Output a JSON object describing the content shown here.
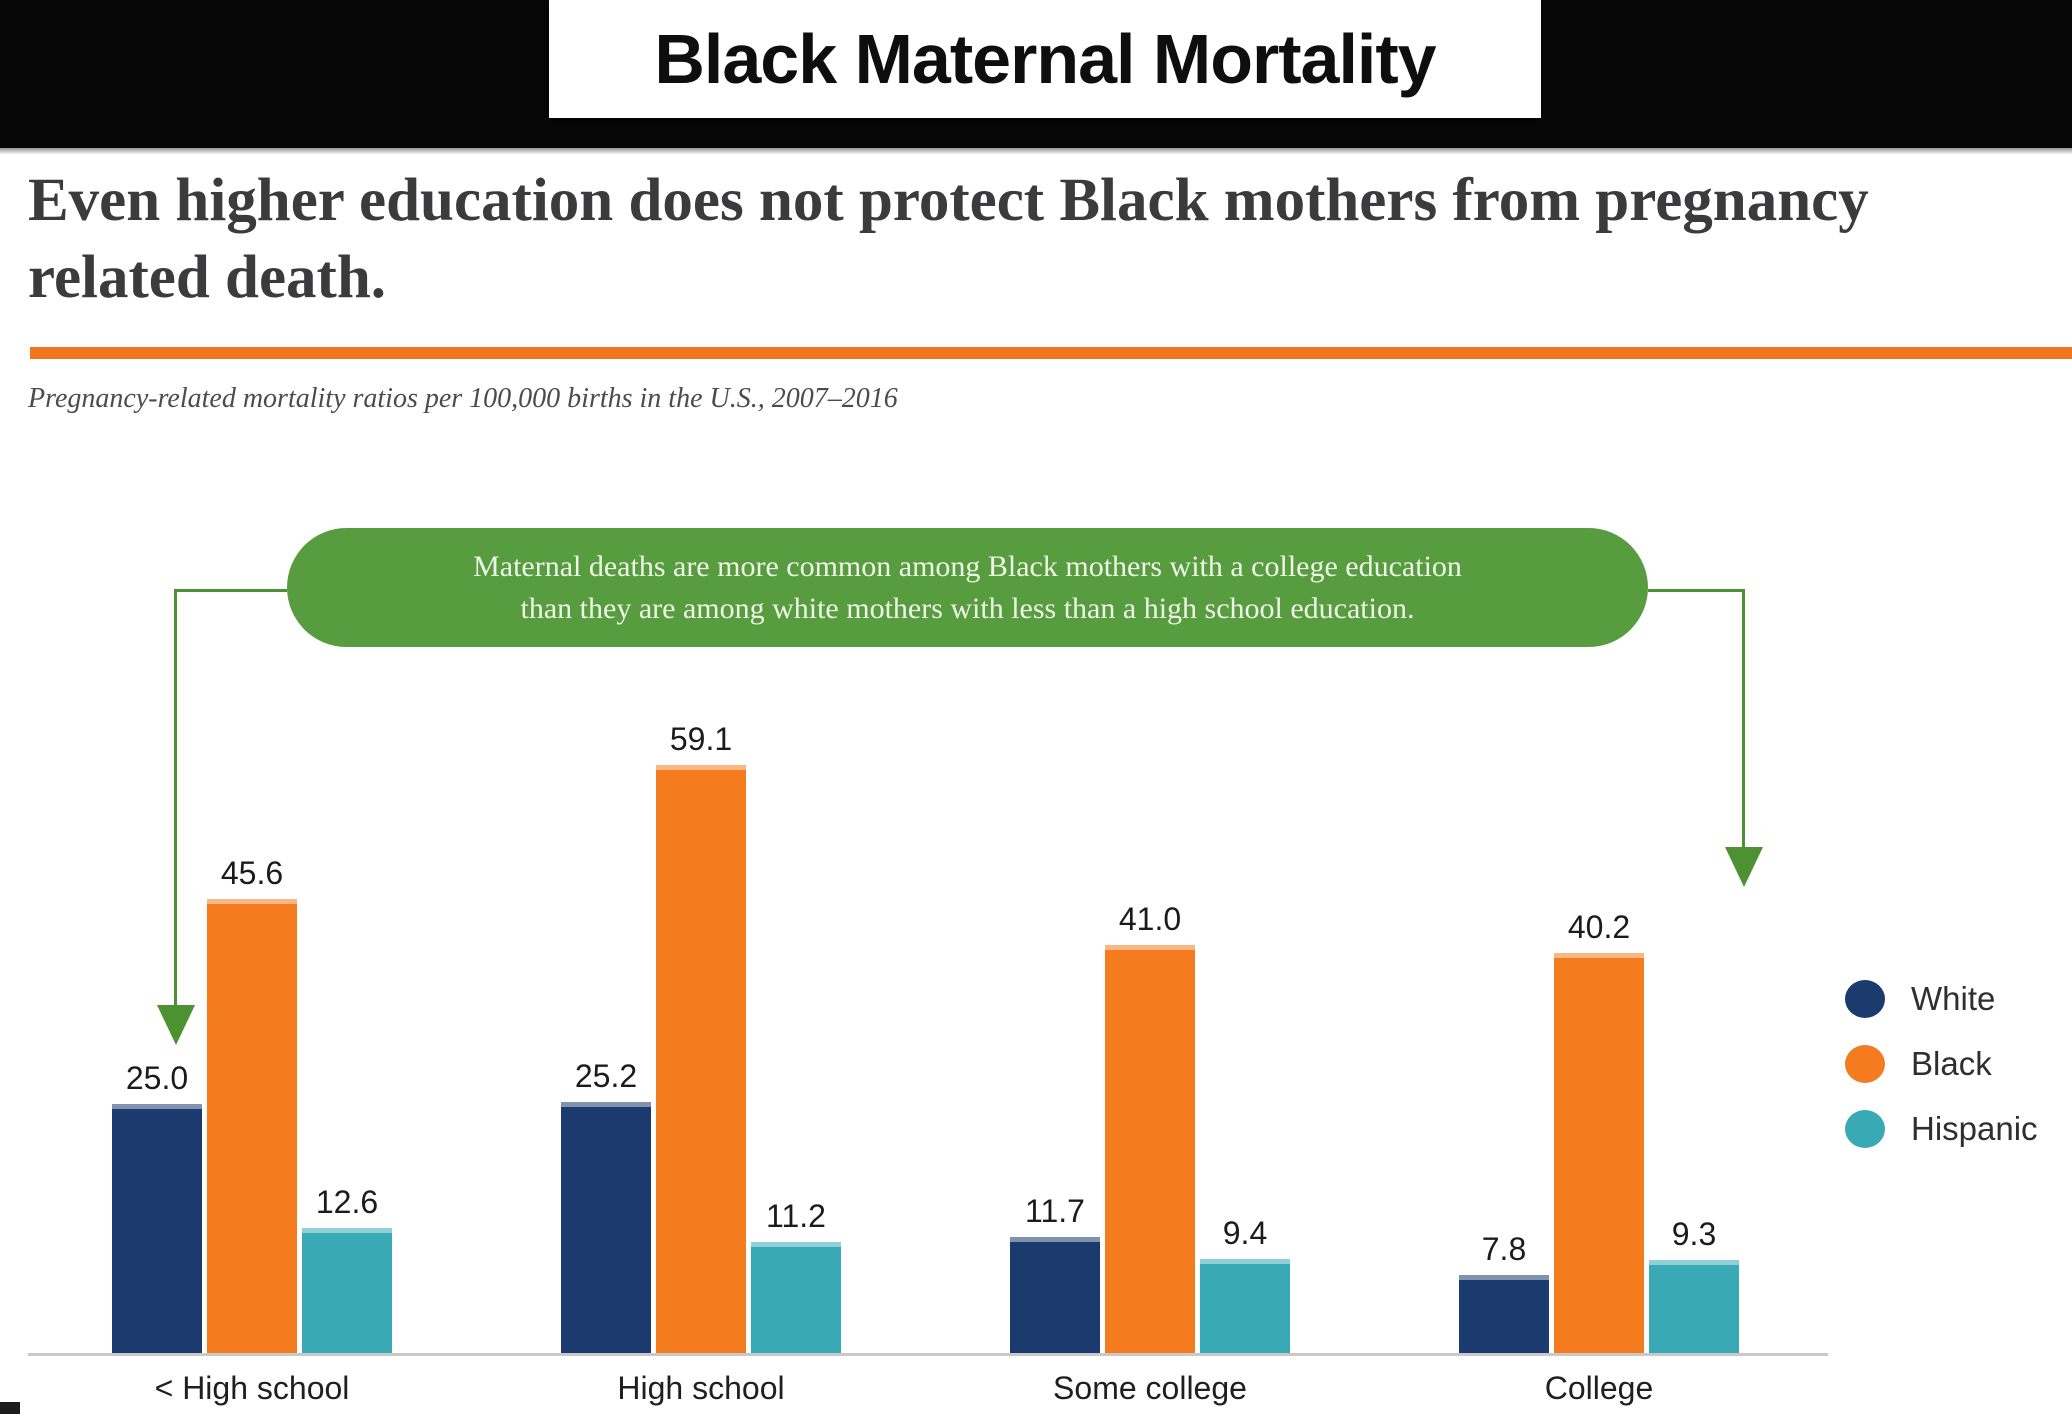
{
  "header": {
    "title": "Black Maternal Mortality"
  },
  "headline": {
    "line1": "Even higher education does not protect Black mothers from pregnancy",
    "line2": "related death."
  },
  "subtitle": "Pregnancy-related mortality ratios per 100,000 births in the U.S., 2007–2016",
  "callout": {
    "line1": "Maternal deaths are more common among Black mothers with a college education",
    "line2": "than they are among white mothers with less than a high school education."
  },
  "legend": [
    {
      "label": "White",
      "color": "#1b3a6e"
    },
    {
      "label": "Black",
      "color": "#f57c1e"
    },
    {
      "label": "Hispanic",
      "color": "#38a9b5"
    }
  ],
  "colors": {
    "accent_orange": "#f0761f",
    "callout_green": "#579c3e",
    "arrow_green": "#4d9232",
    "banner_black": "#070707"
  },
  "chart_data": {
    "type": "bar",
    "title": "Black Maternal Mortality",
    "subtitle": "Pregnancy-related mortality ratios per 100,000 births in the U.S., 2007–2016",
    "categories": [
      "< High school",
      "High school",
      "Some college",
      "College"
    ],
    "series": [
      {
        "name": "White",
        "color": "#1b3a6e",
        "values": [
          25.0,
          25.2,
          11.7,
          7.8
        ]
      },
      {
        "name": "Black",
        "color": "#f57c1e",
        "values": [
          45.6,
          59.1,
          41.0,
          40.2
        ]
      },
      {
        "name": "Hispanic",
        "color": "#38a9b5",
        "values": [
          12.6,
          11.2,
          9.4,
          9.3
        ]
      }
    ],
    "value_labels": true,
    "xlabel": "",
    "ylabel": "",
    "ylim": [
      0,
      60
    ],
    "grid": false,
    "legend_position": "right"
  }
}
